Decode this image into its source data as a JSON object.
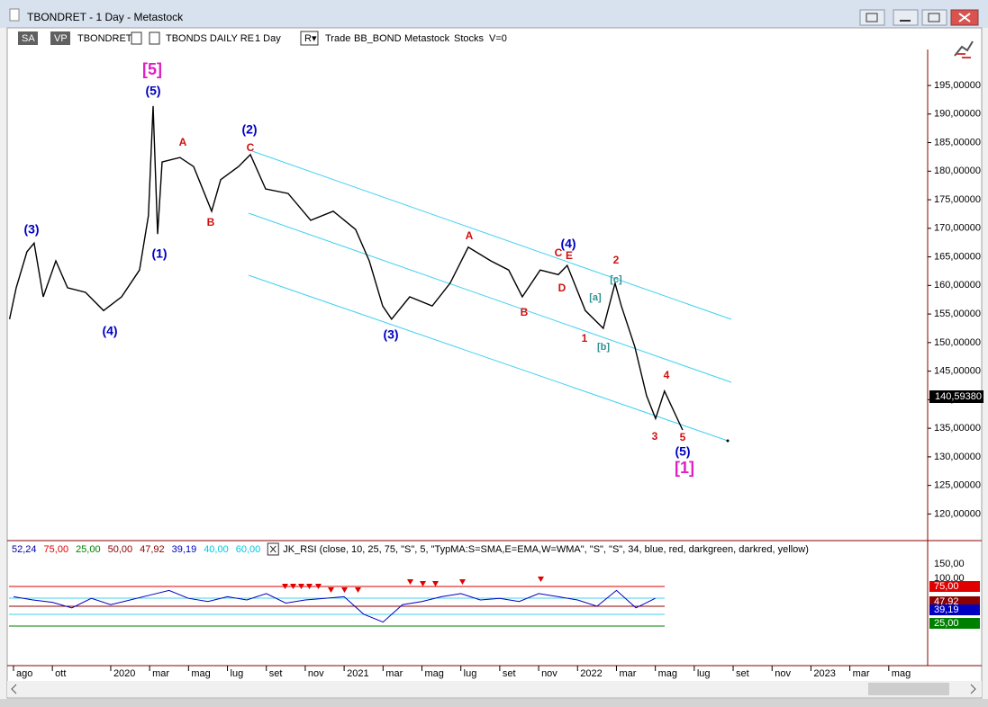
{
  "window": {
    "title": "TBONDRET - 1 Day - Metastock"
  },
  "toolbar": {
    "items": [
      "SA",
      "VP",
      "TBONDRET",
      "TBONDS DAILY RE",
      "1 Day",
      "R▾",
      "Trade",
      "BB_BOND",
      "Metastock",
      "Stocks",
      "V=0"
    ]
  },
  "chart_data": {
    "type": "line",
    "color": "#000000",
    "x": [
      -0.2,
      0.14,
      0.69,
      1.06,
      1.53,
      2.18,
      2.78,
      3.7,
      4.63,
      5.56,
      6.48,
      6.94,
      7.18,
      7.41,
      7.64,
      8.56,
      9.26,
      10.19,
      10.65,
      11.57,
      12.18,
      12.96,
      14.12,
      15.28,
      16.44,
      17.59,
      18.29,
      18.98,
      19.44,
      20.37,
      21.53,
      22.45,
      23.38,
      24.54,
      25.46,
      26.16,
      27.08,
      28.01,
      28.47,
      29.4,
      30.32,
      30.93,
      31.25,
      31.94,
      32.55,
      33.01,
      33.47,
      34.4
    ],
    "values": [
      154.1,
      159.6,
      165.9,
      167.4,
      158.0,
      164.3,
      159.6,
      158.8,
      155.6,
      158.0,
      162.7,
      172.2,
      191.4,
      169.0,
      181.6,
      182.4,
      180.8,
      173.0,
      178.5,
      180.8,
      182.9,
      176.9,
      176.1,
      171.4,
      173.0,
      169.8,
      164.3,
      156.4,
      154.1,
      158.0,
      156.4,
      160.4,
      166.7,
      164.3,
      162.7,
      158.0,
      162.7,
      161.9,
      163.5,
      155.6,
      152.5,
      160.4,
      156.4,
      149.3,
      140.7,
      136.7,
      141.5,
      134.7
    ],
    "xlim": [
      -0.23,
      47
    ],
    "xticks": [
      {
        "value": 0,
        "label": "ago"
      },
      {
        "value": 2,
        "label": "ott"
      },
      {
        "value": 5,
        "label": "2020"
      },
      {
        "value": 7,
        "label": "mar"
      },
      {
        "value": 9,
        "label": "mag"
      },
      {
        "value": 11,
        "label": "lug"
      },
      {
        "value": 13,
        "label": "set"
      },
      {
        "value": 15,
        "label": "nov"
      },
      {
        "value": 17,
        "label": "2021"
      },
      {
        "value": 19,
        "label": "mar"
      },
      {
        "value": 21,
        "label": "mag"
      },
      {
        "value": 23,
        "label": "lug"
      },
      {
        "value": 25,
        "label": "set"
      },
      {
        "value": 27,
        "label": "nov"
      },
      {
        "value": 29,
        "label": "2022"
      },
      {
        "value": 31,
        "label": "mar"
      },
      {
        "value": 33,
        "label": "mag"
      },
      {
        "value": 35,
        "label": "lug"
      },
      {
        "value": 37,
        "label": "set"
      },
      {
        "value": 39,
        "label": "nov"
      },
      {
        "value": 41,
        "label": "2023"
      },
      {
        "value": 43,
        "label": "mar"
      },
      {
        "value": 45,
        "label": "mag"
      }
    ],
    "ylim": [
      115.5,
      201.3
    ],
    "yticks": [
      {
        "value": 120,
        "label": "120,00000"
      },
      {
        "value": 125,
        "label": "125,00000"
      },
      {
        "value": 130,
        "label": "130,00000"
      },
      {
        "value": 135,
        "label": "135,00000"
      },
      {
        "value": 140,
        "label": "140,00000"
      },
      {
        "value": 145,
        "label": "145,00000"
      },
      {
        "value": 150,
        "label": "150,00000"
      },
      {
        "value": 155,
        "label": "155,00000"
      },
      {
        "value": 160,
        "label": "160,00000"
      },
      {
        "value": 165,
        "label": "165,00000"
      },
      {
        "value": 170,
        "label": "170,00000"
      },
      {
        "value": 175,
        "label": "175,00000"
      },
      {
        "value": 180,
        "label": "180,00000"
      },
      {
        "value": 185,
        "label": "185,00000"
      },
      {
        "value": 190,
        "label": "190,00000"
      },
      {
        "value": 195,
        "label": "195,00000"
      }
    ],
    "price_tag": "140,59380",
    "annotations": [
      {
        "text": "[5]",
        "color": "#e020c0"
      },
      {
        "text": "(5)",
        "color": "#0000c0"
      },
      {
        "text": "A",
        "color": "#d01010"
      },
      {
        "text": "(2)",
        "color": "#0000c0"
      },
      {
        "text": "C",
        "color": "#d01010"
      },
      {
        "text": "B",
        "color": "#d01010"
      },
      {
        "text": "(3)",
        "color": "#0000c0"
      },
      {
        "text": "(1)",
        "color": "#0000c0"
      },
      {
        "text": "(4)",
        "color": "#0000c0"
      },
      {
        "text": "(3)",
        "color": "#0000c0"
      },
      {
        "text": "A",
        "color": "#d01010"
      },
      {
        "text": "(4)",
        "color": "#0000c0"
      },
      {
        "text": "C",
        "color": "#d01010"
      },
      {
        "text": "E",
        "color": "#d01010"
      },
      {
        "text": "2",
        "color": "#d01010"
      },
      {
        "text": "[c]",
        "color": "#309090"
      },
      {
        "text": "D",
        "color": "#d01010"
      },
      {
        "text": "[a]",
        "color": "#309090"
      },
      {
        "text": "B",
        "color": "#d01010"
      },
      {
        "text": "1",
        "color": "#d01010"
      },
      {
        "text": "[b]",
        "color": "#309090"
      },
      {
        "text": "4",
        "color": "#d01010"
      },
      {
        "text": "3",
        "color": "#d01010"
      },
      {
        "text": "5",
        "color": "#d01010"
      },
      {
        "text": "(5)",
        "color": "#0000c0"
      },
      {
        "text": "[1]",
        "color": "#e020c0"
      }
    ]
  },
  "indicator": {
    "legend": [
      {
        "text": "52,24",
        "color": "#0000a0"
      },
      {
        "text": "75,00",
        "color": "#e00000"
      },
      {
        "text": "25,00",
        "color": "#008000"
      },
      {
        "text": "50,00",
        "color": "#8b0000"
      },
      {
        "text": "47,92",
        "color": "#8b0000"
      },
      {
        "text": "39,19",
        "color": "#0000c0"
      },
      {
        "text": "40,00",
        "color": "#00c8e0"
      },
      {
        "text": "60,00",
        "color": "#00c8e0"
      }
    ],
    "formula": "JK_RSI  (close,  10,  25,  75,  \"S\",  5,  \"TypMA:S=SMA,E=EMA,W=WMA\",  \"S\",  \"S\",  34,  blue,  red,  darkgreen,  darkred,  yellow)",
    "axis_labels": [
      {
        "text": "150,00",
        "color": "#000000",
        "box": "none"
      },
      {
        "text": "100,00",
        "color": "#000000",
        "box": "none"
      },
      {
        "text": "75,00",
        "color": "#ffffff",
        "box": "#e00000"
      },
      {
        "text": "47,92",
        "color": "#ffffff",
        "box": "#8b0000"
      },
      {
        "text": "39,19",
        "color": "#ffffff",
        "box": "#0000c0"
      },
      {
        "text": "25,00",
        "color": "#ffffff",
        "box": "#008000"
      }
    ],
    "x": [
      0,
      1,
      2,
      3,
      4,
      5,
      6,
      7,
      8,
      9,
      10,
      11,
      12,
      13,
      14,
      15,
      16,
      17,
      18,
      19,
      20,
      21,
      22,
      23,
      24,
      25,
      26,
      27,
      28,
      29,
      30,
      31,
      32,
      33
    ],
    "values": [
      62,
      58,
      55,
      48,
      60,
      52,
      58,
      64,
      70,
      60,
      56,
      62,
      58,
      66,
      54,
      58,
      60,
      62,
      40,
      30,
      52,
      56,
      62,
      66,
      58,
      60,
      56,
      66,
      62,
      58,
      50,
      70,
      48,
      60
    ],
    "color": "#0000c0"
  }
}
